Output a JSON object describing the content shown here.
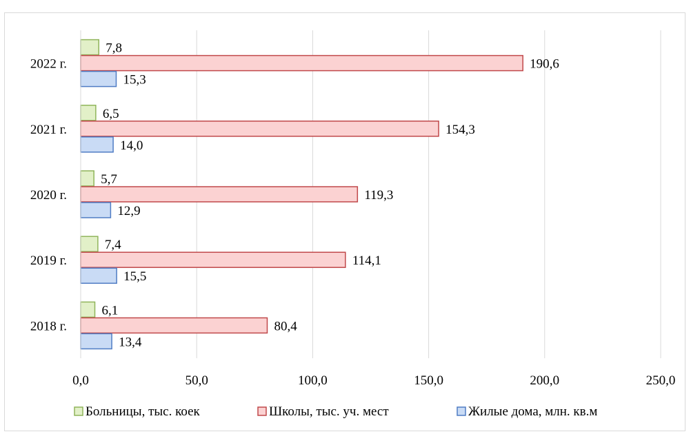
{
  "chart_data": {
    "type": "bar",
    "orientation": "horizontal",
    "categories": [
      "2018 г.",
      "2019 г.",
      "2020 г.",
      "2021 г.",
      "2022 г."
    ],
    "series": [
      {
        "name": "Больницы, тыс. коек",
        "values": [
          6.1,
          7.4,
          5.7,
          6.5,
          7.8
        ],
        "labels": [
          "6,1",
          "7,4",
          "5,7",
          "6,5",
          "7,8"
        ],
        "fill": "#e2f0c8",
        "stroke": "#8fb45a"
      },
      {
        "name": "Школы, тыс. уч. мест",
        "values": [
          80.4,
          114.1,
          119.3,
          154.3,
          190.6
        ],
        "labels": [
          "80,4",
          "114,1",
          "119,3",
          "154,3",
          "190,6"
        ],
        "fill": "#fbd2d2",
        "stroke": "#c0484a"
      },
      {
        "name": "Жилые дома, млн. кв.м",
        "values": [
          13.4,
          15.5,
          12.9,
          14.0,
          15.3
        ],
        "labels": [
          "13,4",
          "15,5",
          "12,9",
          "14,0",
          "15,3"
        ],
        "fill": "#c9dbf5",
        "stroke": "#4f7cc4"
      }
    ],
    "xlim": [
      0,
      250
    ],
    "xticks": [
      0,
      50,
      100,
      150,
      200,
      250
    ],
    "xtick_labels": [
      "0,0",
      "50,0",
      "100,0",
      "150,0",
      "200,0",
      "250,0"
    ],
    "grid": true,
    "legend_position": "bottom",
    "title": "",
    "xlabel": "",
    "ylabel": ""
  }
}
